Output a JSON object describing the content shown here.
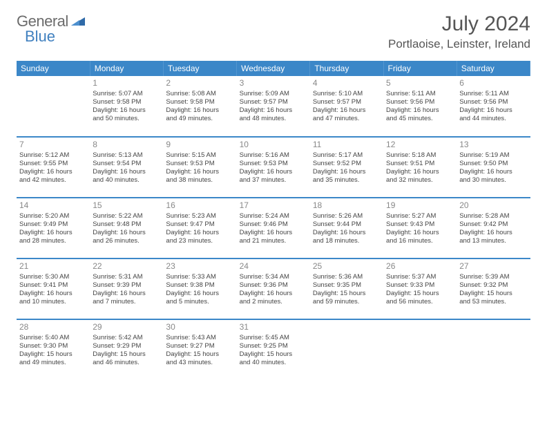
{
  "brand": {
    "name_gray": "General",
    "name_blue": "Blue"
  },
  "title": "July 2024",
  "location": "Portlaoise, Leinster, Ireland",
  "weekdays": [
    "Sunday",
    "Monday",
    "Tuesday",
    "Wednesday",
    "Thursday",
    "Friday",
    "Saturday"
  ],
  "header_bg": "#3b87c8",
  "row_divider": "#3b87c8",
  "weeks": [
    [
      {
        "day": "",
        "lines": []
      },
      {
        "day": "1",
        "lines": [
          "Sunrise: 5:07 AM",
          "Sunset: 9:58 PM",
          "Daylight: 16 hours",
          "and 50 minutes."
        ]
      },
      {
        "day": "2",
        "lines": [
          "Sunrise: 5:08 AM",
          "Sunset: 9:58 PM",
          "Daylight: 16 hours",
          "and 49 minutes."
        ]
      },
      {
        "day": "3",
        "lines": [
          "Sunrise: 5:09 AM",
          "Sunset: 9:57 PM",
          "Daylight: 16 hours",
          "and 48 minutes."
        ]
      },
      {
        "day": "4",
        "lines": [
          "Sunrise: 5:10 AM",
          "Sunset: 9:57 PM",
          "Daylight: 16 hours",
          "and 47 minutes."
        ]
      },
      {
        "day": "5",
        "lines": [
          "Sunrise: 5:11 AM",
          "Sunset: 9:56 PM",
          "Daylight: 16 hours",
          "and 45 minutes."
        ]
      },
      {
        "day": "6",
        "lines": [
          "Sunrise: 5:11 AM",
          "Sunset: 9:56 PM",
          "Daylight: 16 hours",
          "and 44 minutes."
        ]
      }
    ],
    [
      {
        "day": "7",
        "lines": [
          "Sunrise: 5:12 AM",
          "Sunset: 9:55 PM",
          "Daylight: 16 hours",
          "and 42 minutes."
        ]
      },
      {
        "day": "8",
        "lines": [
          "Sunrise: 5:13 AM",
          "Sunset: 9:54 PM",
          "Daylight: 16 hours",
          "and 40 minutes."
        ]
      },
      {
        "day": "9",
        "lines": [
          "Sunrise: 5:15 AM",
          "Sunset: 9:53 PM",
          "Daylight: 16 hours",
          "and 38 minutes."
        ]
      },
      {
        "day": "10",
        "lines": [
          "Sunrise: 5:16 AM",
          "Sunset: 9:53 PM",
          "Daylight: 16 hours",
          "and 37 minutes."
        ]
      },
      {
        "day": "11",
        "lines": [
          "Sunrise: 5:17 AM",
          "Sunset: 9:52 PM",
          "Daylight: 16 hours",
          "and 35 minutes."
        ]
      },
      {
        "day": "12",
        "lines": [
          "Sunrise: 5:18 AM",
          "Sunset: 9:51 PM",
          "Daylight: 16 hours",
          "and 32 minutes."
        ]
      },
      {
        "day": "13",
        "lines": [
          "Sunrise: 5:19 AM",
          "Sunset: 9:50 PM",
          "Daylight: 16 hours",
          "and 30 minutes."
        ]
      }
    ],
    [
      {
        "day": "14",
        "lines": [
          "Sunrise: 5:20 AM",
          "Sunset: 9:49 PM",
          "Daylight: 16 hours",
          "and 28 minutes."
        ]
      },
      {
        "day": "15",
        "lines": [
          "Sunrise: 5:22 AM",
          "Sunset: 9:48 PM",
          "Daylight: 16 hours",
          "and 26 minutes."
        ]
      },
      {
        "day": "16",
        "lines": [
          "Sunrise: 5:23 AM",
          "Sunset: 9:47 PM",
          "Daylight: 16 hours",
          "and 23 minutes."
        ]
      },
      {
        "day": "17",
        "lines": [
          "Sunrise: 5:24 AM",
          "Sunset: 9:46 PM",
          "Daylight: 16 hours",
          "and 21 minutes."
        ]
      },
      {
        "day": "18",
        "lines": [
          "Sunrise: 5:26 AM",
          "Sunset: 9:44 PM",
          "Daylight: 16 hours",
          "and 18 minutes."
        ]
      },
      {
        "day": "19",
        "lines": [
          "Sunrise: 5:27 AM",
          "Sunset: 9:43 PM",
          "Daylight: 16 hours",
          "and 16 minutes."
        ]
      },
      {
        "day": "20",
        "lines": [
          "Sunrise: 5:28 AM",
          "Sunset: 9:42 PM",
          "Daylight: 16 hours",
          "and 13 minutes."
        ]
      }
    ],
    [
      {
        "day": "21",
        "lines": [
          "Sunrise: 5:30 AM",
          "Sunset: 9:41 PM",
          "Daylight: 16 hours",
          "and 10 minutes."
        ]
      },
      {
        "day": "22",
        "lines": [
          "Sunrise: 5:31 AM",
          "Sunset: 9:39 PM",
          "Daylight: 16 hours",
          "and 7 minutes."
        ]
      },
      {
        "day": "23",
        "lines": [
          "Sunrise: 5:33 AM",
          "Sunset: 9:38 PM",
          "Daylight: 16 hours",
          "and 5 minutes."
        ]
      },
      {
        "day": "24",
        "lines": [
          "Sunrise: 5:34 AM",
          "Sunset: 9:36 PM",
          "Daylight: 16 hours",
          "and 2 minutes."
        ]
      },
      {
        "day": "25",
        "lines": [
          "Sunrise: 5:36 AM",
          "Sunset: 9:35 PM",
          "Daylight: 15 hours",
          "and 59 minutes."
        ]
      },
      {
        "day": "26",
        "lines": [
          "Sunrise: 5:37 AM",
          "Sunset: 9:33 PM",
          "Daylight: 15 hours",
          "and 56 minutes."
        ]
      },
      {
        "day": "27",
        "lines": [
          "Sunrise: 5:39 AM",
          "Sunset: 9:32 PM",
          "Daylight: 15 hours",
          "and 53 minutes."
        ]
      }
    ],
    [
      {
        "day": "28",
        "lines": [
          "Sunrise: 5:40 AM",
          "Sunset: 9:30 PM",
          "Daylight: 15 hours",
          "and 49 minutes."
        ]
      },
      {
        "day": "29",
        "lines": [
          "Sunrise: 5:42 AM",
          "Sunset: 9:29 PM",
          "Daylight: 15 hours",
          "and 46 minutes."
        ]
      },
      {
        "day": "30",
        "lines": [
          "Sunrise: 5:43 AM",
          "Sunset: 9:27 PM",
          "Daylight: 15 hours",
          "and 43 minutes."
        ]
      },
      {
        "day": "31",
        "lines": [
          "Sunrise: 5:45 AM",
          "Sunset: 9:25 PM",
          "Daylight: 15 hours",
          "and 40 minutes."
        ]
      },
      {
        "day": "",
        "lines": []
      },
      {
        "day": "",
        "lines": []
      },
      {
        "day": "",
        "lines": []
      }
    ]
  ]
}
